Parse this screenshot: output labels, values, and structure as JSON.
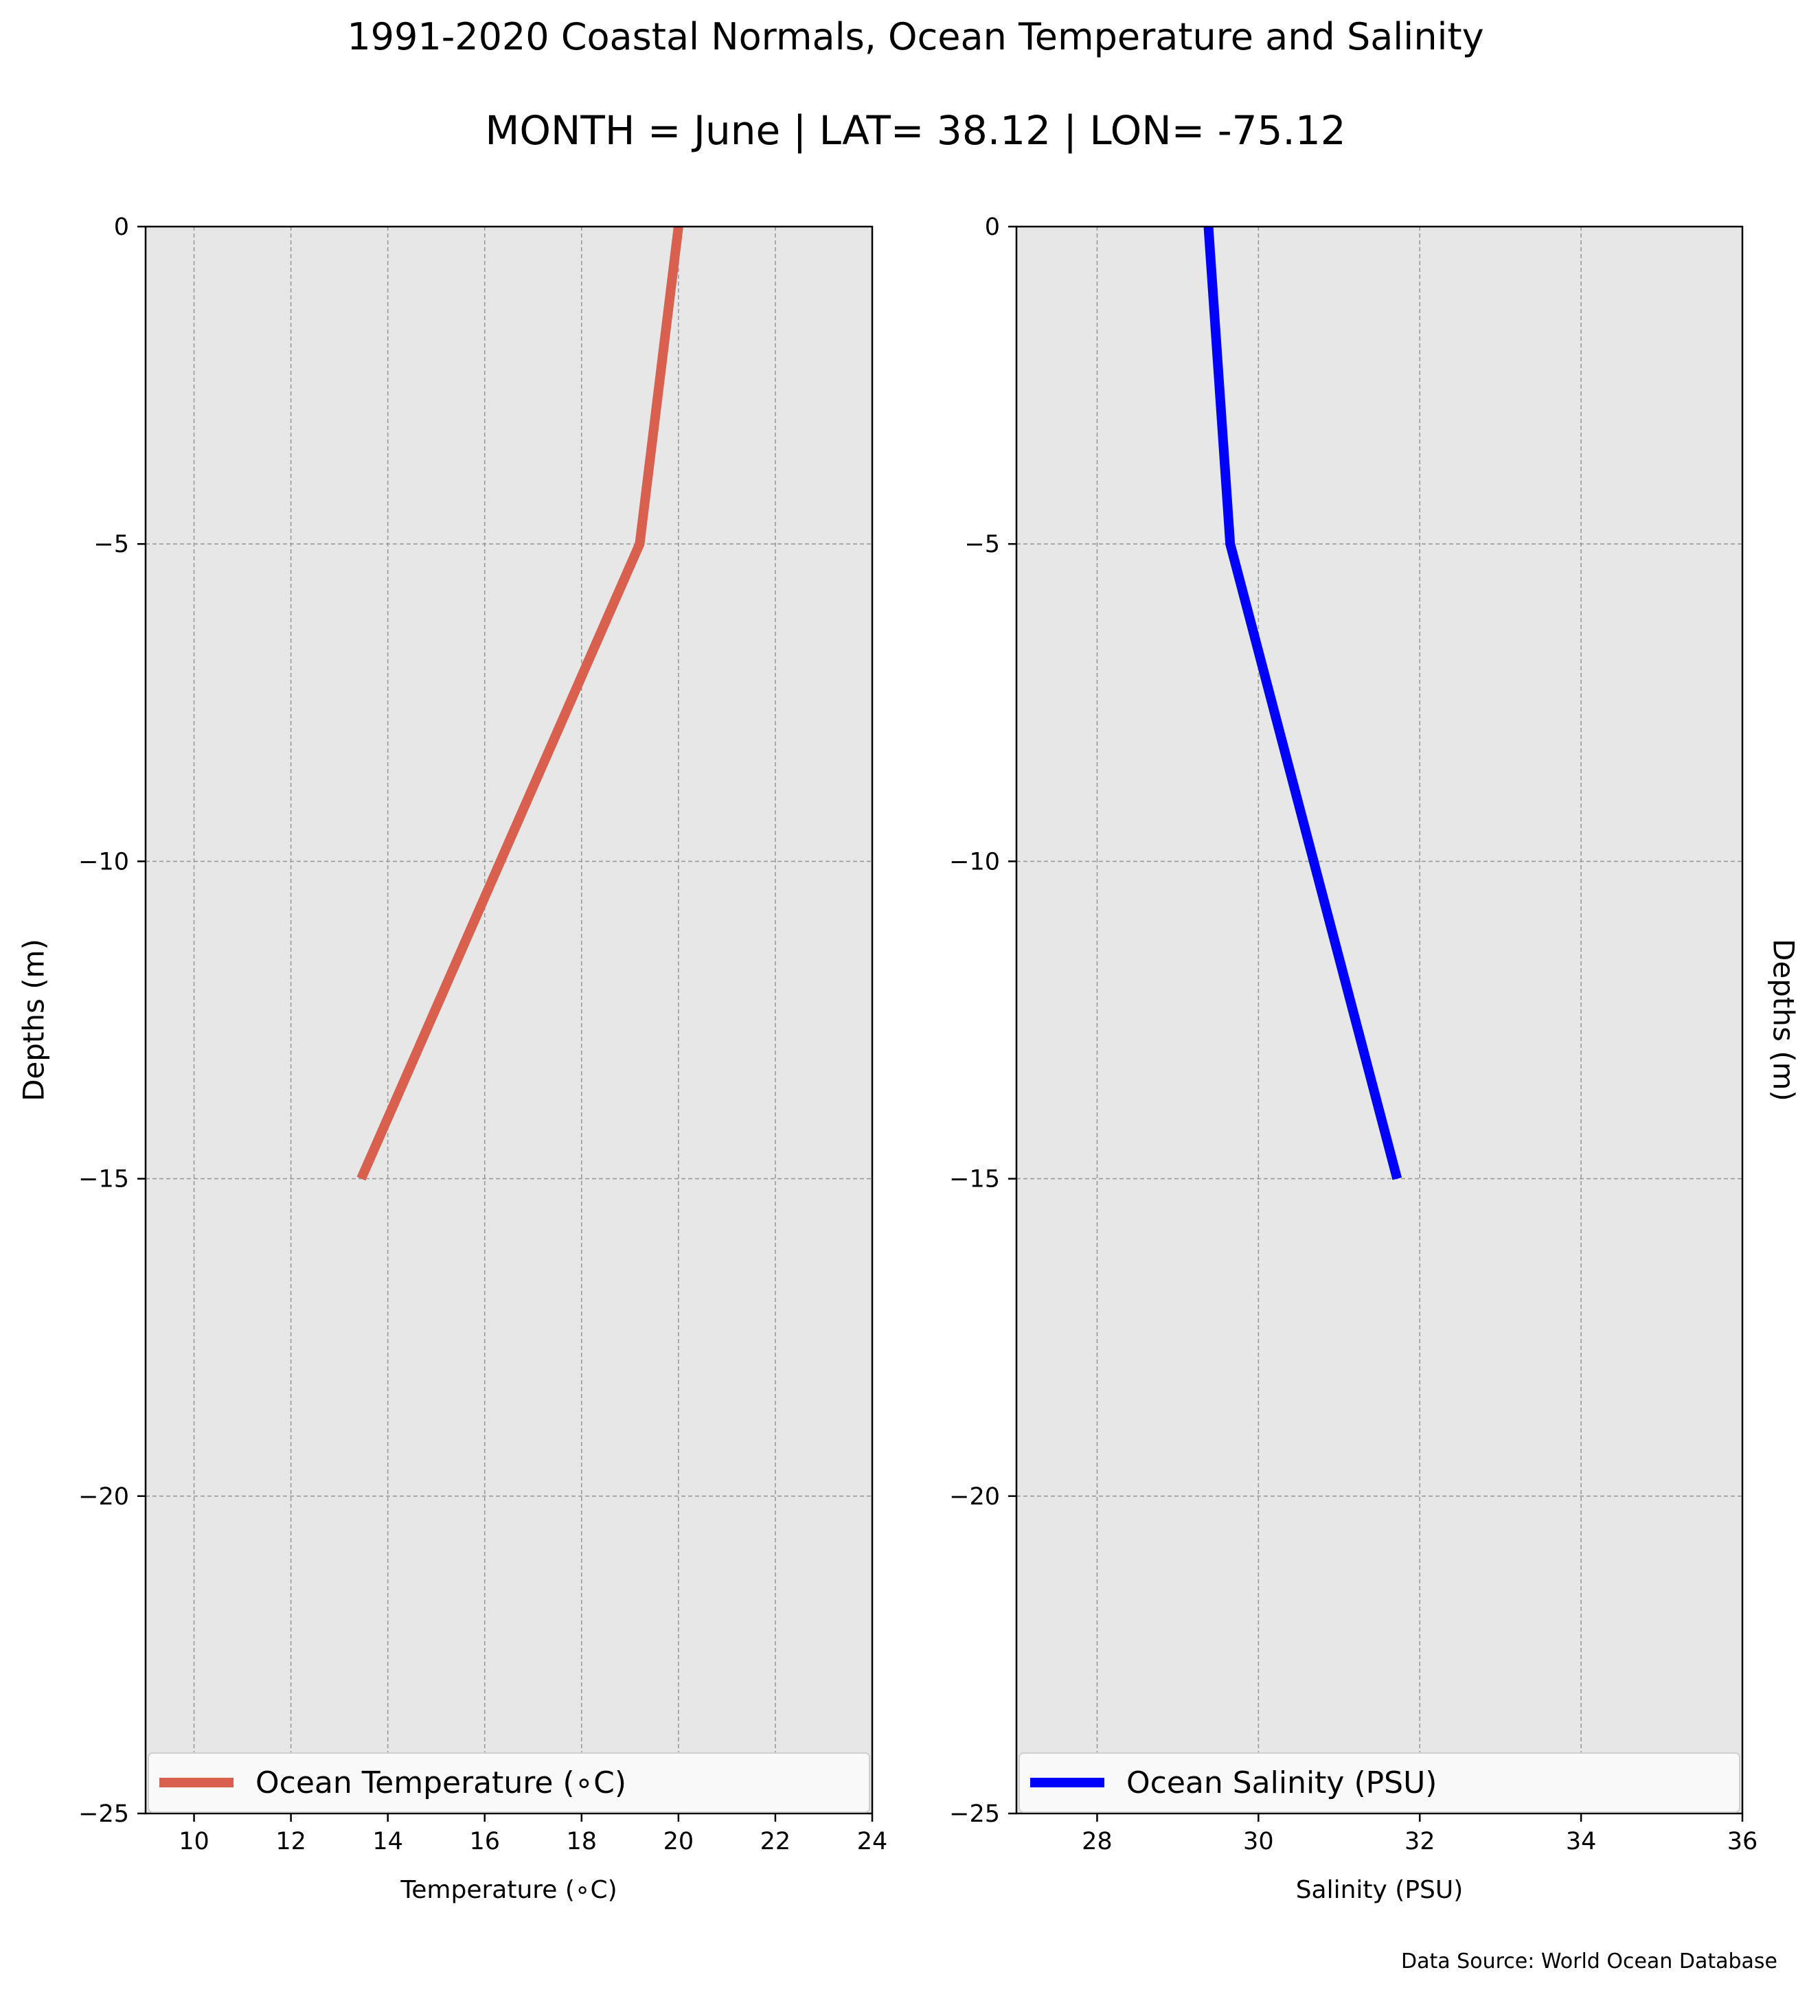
{
  "figure": {
    "title": "1991-2020 Coastal Normals, Ocean Temperature and Salinity",
    "subtitle": "MONTH = June | LAT= 38.12 | LON= -75.12",
    "source_note": "Data Source: World Ocean Database"
  },
  "chart_data": [
    {
      "type": "line",
      "orientation": "vertical-profile",
      "xlabel": "Temperature (∘C)",
      "ylabel": "Depths (m)",
      "xlim": [
        9,
        24
      ],
      "ylim": [
        -25,
        0
      ],
      "x_ticks": [
        10,
        12,
        14,
        16,
        18,
        20,
        22,
        24
      ],
      "x_tick_labels": [
        "10",
        "12",
        "14",
        "16",
        "18",
        "20",
        "22",
        "24"
      ],
      "y_ticks": [
        0,
        -5,
        -10,
        -15,
        -20,
        -25
      ],
      "y_tick_labels": [
        "0",
        "−5",
        "−10",
        "−15",
        "−20",
        "−25"
      ],
      "grid": true,
      "legend_position": "bottom",
      "series": [
        {
          "name": "Ocean Temperature (∘C)",
          "color": "#d95f4e",
          "x": [
            20.0,
            19.2,
            13.45
          ],
          "y": [
            0,
            -5,
            -15
          ]
        }
      ]
    },
    {
      "type": "line",
      "orientation": "vertical-profile",
      "xlabel": "Salinity (PSU)",
      "ylabel": "Depths (m)",
      "xlim": [
        27,
        36
      ],
      "ylim": [
        -25,
        0
      ],
      "x_ticks": [
        28,
        30,
        32,
        34,
        36
      ],
      "x_tick_labels": [
        "28",
        "30",
        "32",
        "34",
        "36"
      ],
      "y_ticks": [
        0,
        -5,
        -10,
        -15,
        -20,
        -25
      ],
      "y_tick_labels": [
        "0",
        "−5",
        "−10",
        "−15",
        "−20",
        "−25"
      ],
      "grid": true,
      "legend_position": "bottom",
      "series": [
        {
          "name": "Ocean Salinity (PSU)",
          "color": "#0000ff",
          "x": [
            29.38,
            29.65,
            31.72
          ],
          "y": [
            0,
            -5,
            -15
          ]
        }
      ]
    }
  ]
}
